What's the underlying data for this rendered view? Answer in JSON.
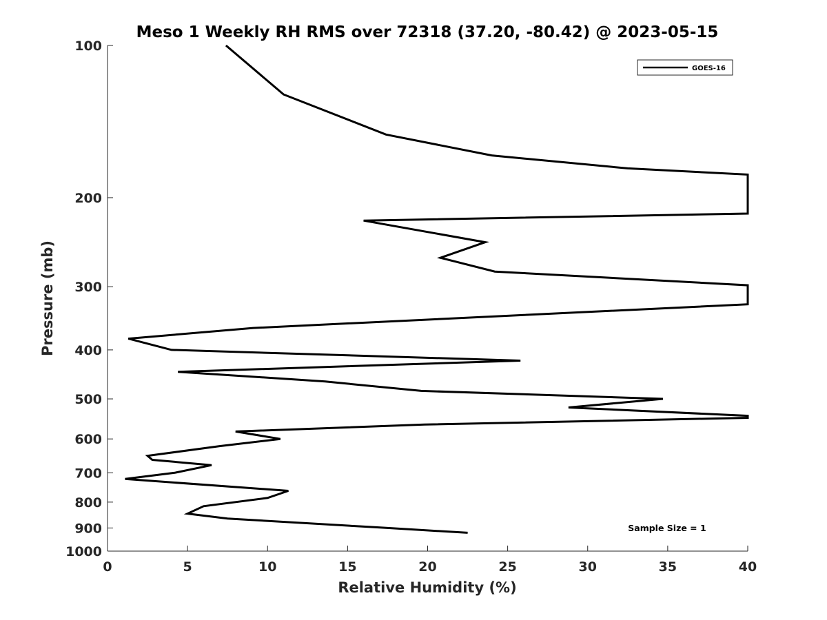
{
  "chart_data": {
    "type": "line",
    "title": "Meso 1 Weekly RH RMS over 72318 (37.20, -80.42) @ 2023-05-15",
    "xlabel": "Relative Humidity (%)",
    "ylabel": "Pressure (mb)",
    "xlim": [
      0,
      40
    ],
    "ylim": [
      100,
      1000
    ],
    "y_scale": "log",
    "y_reversed": true,
    "grid": false,
    "legend_position": "top-right",
    "x_ticks": [
      "0",
      "5",
      "10",
      "15",
      "20",
      "25",
      "30",
      "35",
      "40"
    ],
    "y_ticks": [
      "100",
      "200",
      "300",
      "400",
      "500",
      "600",
      "700",
      "800",
      "900",
      "1000"
    ],
    "annotation": "Sample Size = 1",
    "series": [
      {
        "name": "GOES-16",
        "color": "#000000",
        "points": [
          [
            7.4,
            100
          ],
          [
            11.0,
            125
          ],
          [
            17.4,
            150
          ],
          [
            24.0,
            165
          ],
          [
            32.5,
            175
          ],
          [
            40.0,
            180
          ],
          [
            40.0,
            215
          ],
          [
            16.0,
            222
          ],
          [
            23.6,
            245
          ],
          [
            20.8,
            263
          ],
          [
            24.2,
            280
          ],
          [
            40.0,
            298
          ],
          [
            40.0,
            325
          ],
          [
            9.1,
            362
          ],
          [
            1.3,
            380
          ],
          [
            4.0,
            400
          ],
          [
            25.8,
            420
          ],
          [
            4.4,
            442
          ],
          [
            13.6,
            462
          ],
          [
            19.6,
            482
          ],
          [
            34.7,
            500
          ],
          [
            28.8,
            520
          ],
          [
            40.0,
            540
          ],
          [
            40.0,
            545
          ],
          [
            19.8,
            562
          ],
          [
            8.0,
            580
          ],
          [
            10.8,
            600
          ],
          [
            7.0,
            620
          ],
          [
            2.5,
            648
          ],
          [
            2.8,
            660
          ],
          [
            6.5,
            676
          ],
          [
            4.2,
            700
          ],
          [
            1.1,
            720
          ],
          [
            11.3,
            760
          ],
          [
            10.0,
            785
          ],
          [
            6.0,
            815
          ],
          [
            5.0,
            843
          ],
          [
            7.5,
            862
          ],
          [
            17.5,
            900
          ],
          [
            22.5,
            920
          ]
        ]
      }
    ]
  }
}
